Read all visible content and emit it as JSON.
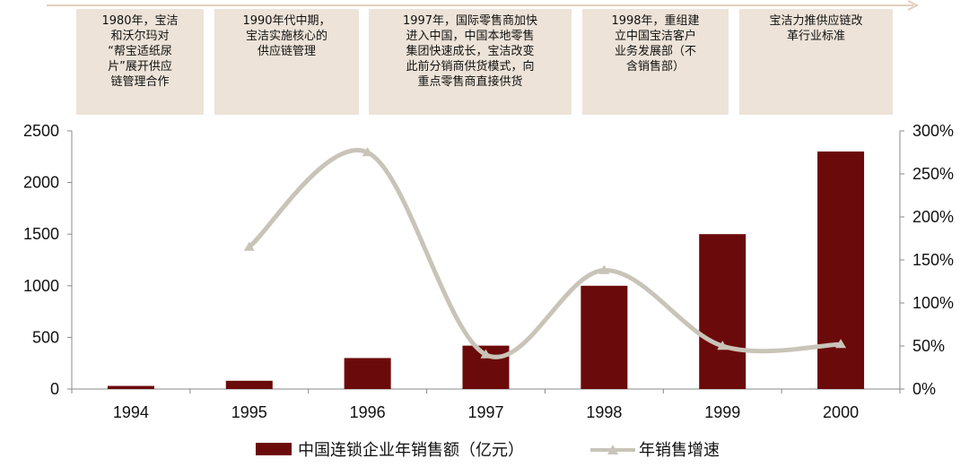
{
  "annotations": [
    "1980年，宝洁\n和沃尔玛对\n“帮宝适纸尿\n片”展开供应\n链管理合作",
    "1990年代中期，\n宝洁实施核心的\n供应链管理",
    "1997年，国际零售商加快\n进入中国，中国本地零售\n集团快速成长，宝洁改变\n此前分销商供货模式，向\n重点零售商直接供货",
    "1998年，重组建\n立中国宝洁客户\n业务发展部（不\n含销售部）",
    "宝洁力推供应链改\n革行业标准"
  ],
  "colors": {
    "bar": "#6b0a0a",
    "line": "#c9c4b8",
    "annotation_bg": "#ede3d8",
    "timeline_arrow": "#e2cfbe",
    "axis": "#888888"
  },
  "chart_data": {
    "type": "bar",
    "categories": [
      "1994",
      "1995",
      "1996",
      "1997",
      "1998",
      "1999",
      "2000"
    ],
    "series": [
      {
        "name": "中国连锁企业年销售额（亿元）",
        "type": "bar",
        "axis": "left",
        "values": [
          30,
          80,
          300,
          420,
          1000,
          1500,
          2300
        ]
      },
      {
        "name": "年销售增速",
        "type": "line",
        "axis": "right",
        "marker": "triangle",
        "values": [
          null,
          165,
          275,
          40,
          138,
          50,
          52
        ]
      }
    ],
    "y_left": {
      "lim": [
        0,
        2500
      ],
      "ticks": [
        "0",
        "500",
        "1000",
        "1500",
        "2000",
        "2500"
      ]
    },
    "y_right": {
      "lim": [
        0,
        300
      ],
      "ticks": [
        "0%",
        "50%",
        "100%",
        "150%",
        "200%",
        "250%",
        "300%"
      ]
    },
    "grid": false,
    "legend_position": "bottom"
  }
}
